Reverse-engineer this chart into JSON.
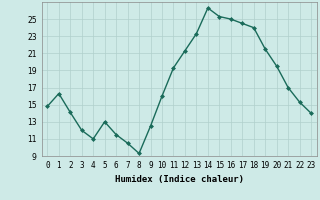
{
  "x": [
    0,
    1,
    2,
    3,
    4,
    5,
    6,
    7,
    8,
    9,
    10,
    11,
    12,
    13,
    14,
    15,
    16,
    17,
    18,
    19,
    20,
    21,
    22,
    23
  ],
  "y": [
    14.8,
    16.3,
    14.1,
    12.0,
    11.0,
    13.0,
    11.5,
    10.5,
    9.3,
    12.5,
    16.0,
    19.3,
    21.3,
    23.3,
    26.3,
    25.3,
    25.0,
    24.5,
    24.0,
    21.5,
    19.5,
    17.0,
    15.3,
    14.0
  ],
  "line_color": "#1a6b5a",
  "marker": "D",
  "marker_size": 2,
  "bg_color": "#ceeae7",
  "grid_color": "#b0d0cc",
  "xlabel": "Humidex (Indice chaleur)",
  "ylim": [
    9,
    27
  ],
  "xlim": [
    -0.5,
    23.5
  ],
  "yticks": [
    9,
    11,
    13,
    15,
    17,
    19,
    21,
    23,
    25
  ],
  "xtick_labels": [
    "0",
    "1",
    "2",
    "3",
    "4",
    "5",
    "6",
    "7",
    "8",
    "9",
    "10",
    "11",
    "12",
    "13",
    "14",
    "15",
    "16",
    "17",
    "18",
    "19",
    "20",
    "21",
    "22",
    "23"
  ],
  "xlabel_fontsize": 6.5,
  "tick_fontsize": 5.5,
  "linewidth": 1.0
}
